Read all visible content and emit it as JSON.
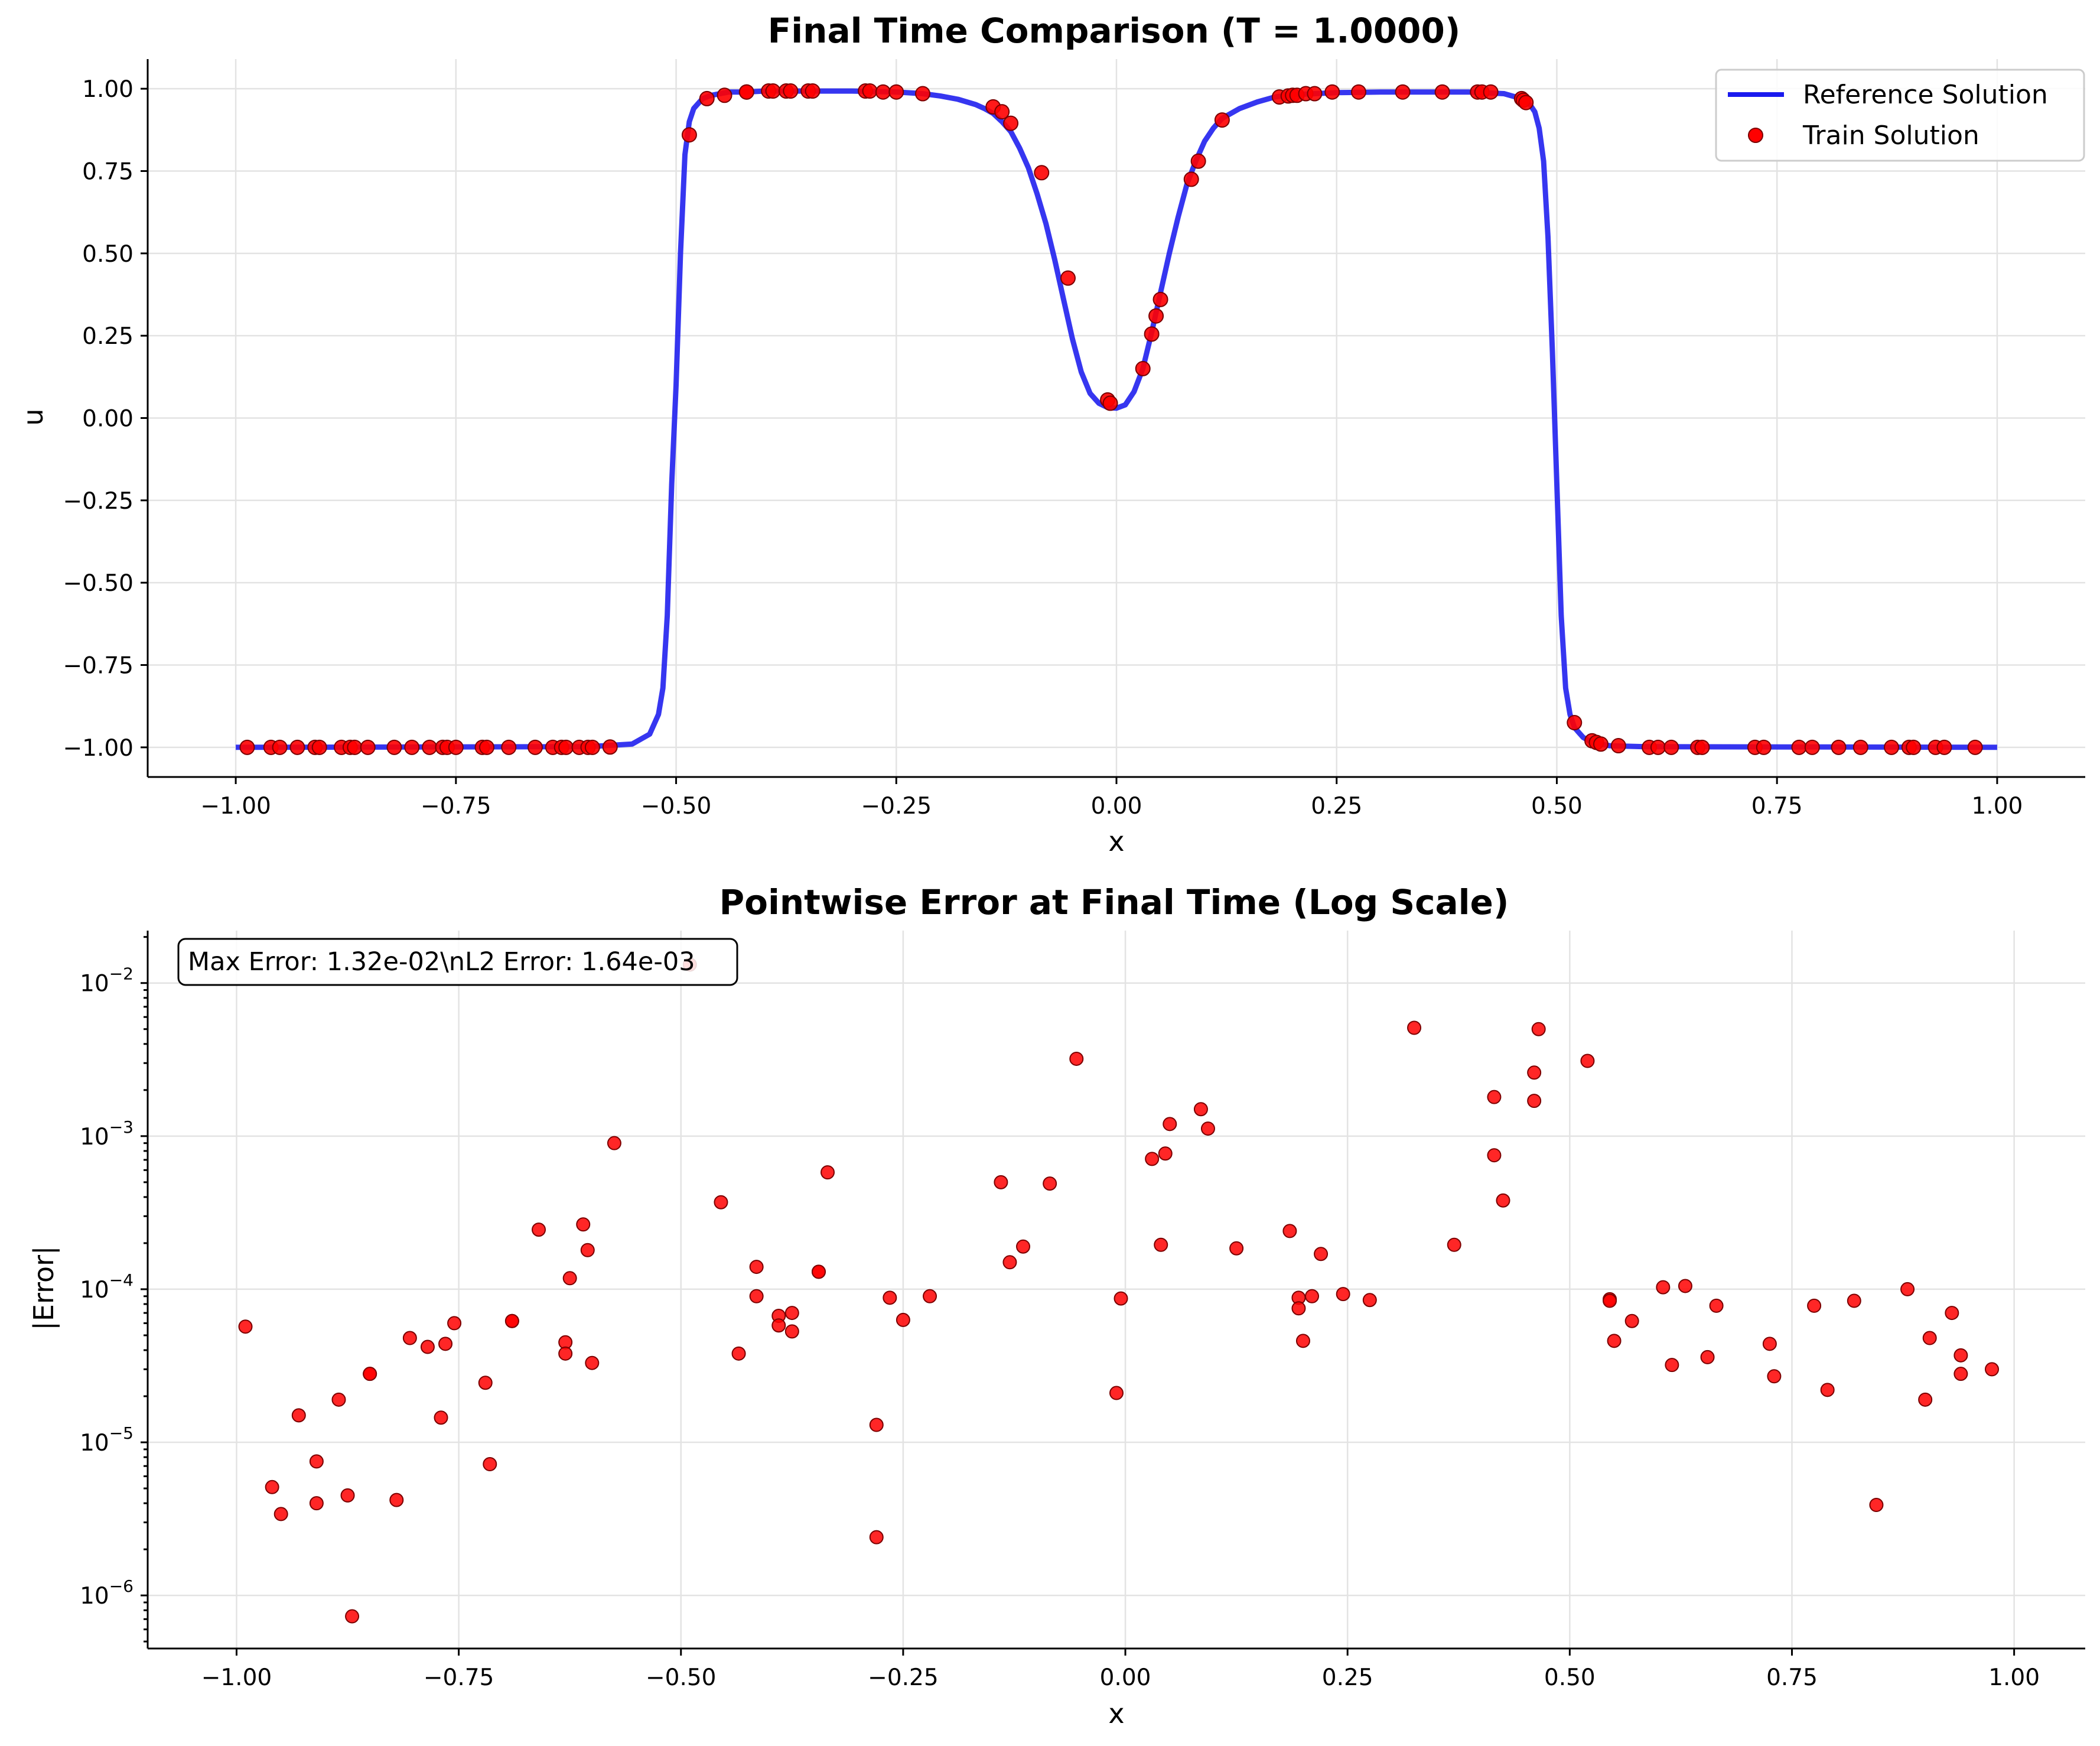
{
  "chart_data": [
    {
      "type": "line",
      "title": "Final Time Comparison (T = 1.0000)",
      "xlabel": "x",
      "ylabel": "u",
      "xlim": [
        -1.1,
        1.1
      ],
      "ylim": [
        -1.09,
        1.09
      ],
      "xticks": [
        -1.0,
        -0.75,
        -0.5,
        -0.25,
        0.0,
        0.25,
        0.5,
        0.75,
        1.0
      ],
      "xtick_labels": [
        "−1.00",
        "−0.75",
        "−0.50",
        "−0.25",
        "0.00",
        "0.25",
        "0.50",
        "0.75",
        "1.00"
      ],
      "yticks": [
        -1.0,
        -0.75,
        -0.5,
        -0.25,
        0.0,
        0.25,
        0.5,
        0.75,
        1.0
      ],
      "ytick_labels": [
        "−1.00",
        "−0.75",
        "−0.50",
        "−0.25",
        "0.00",
        "0.25",
        "0.50",
        "0.75",
        "1.00"
      ],
      "grid": true,
      "legend_position": "top-right",
      "series": [
        {
          "name": "Reference Solution",
          "kind": "line",
          "color": "#1a1aee",
          "x": [
            -1.0,
            -0.6,
            -0.55,
            -0.53,
            -0.52,
            -0.515,
            -0.51,
            -0.505,
            -0.5,
            -0.495,
            -0.49,
            -0.485,
            -0.48,
            -0.47,
            -0.46,
            -0.44,
            -0.42,
            -0.4,
            -0.35,
            -0.3,
            -0.25,
            -0.22,
            -0.2,
            -0.18,
            -0.16,
            -0.15,
            -0.14,
            -0.13,
            -0.12,
            -0.11,
            -0.1,
            -0.09,
            -0.08,
            -0.07,
            -0.06,
            -0.05,
            -0.04,
            -0.03,
            -0.02,
            -0.01,
            0.0,
            0.01,
            0.02,
            0.03,
            0.04,
            0.05,
            0.06,
            0.07,
            0.08,
            0.09,
            0.1,
            0.11,
            0.12,
            0.14,
            0.16,
            0.18,
            0.2,
            0.25,
            0.3,
            0.35,
            0.4,
            0.44,
            0.46,
            0.47,
            0.475,
            0.48,
            0.485,
            0.49,
            0.495,
            0.5,
            0.505,
            0.51,
            0.515,
            0.52,
            0.53,
            0.54,
            0.56,
            0.6,
            1.0
          ],
          "y": [
            -1.0,
            -0.998,
            -0.99,
            -0.96,
            -0.9,
            -0.82,
            -0.6,
            -0.2,
            0.1,
            0.5,
            0.8,
            0.9,
            0.94,
            0.97,
            0.98,
            0.99,
            0.99,
            0.993,
            0.993,
            0.993,
            0.99,
            0.985,
            0.978,
            0.968,
            0.952,
            0.94,
            0.925,
            0.9,
            0.87,
            0.82,
            0.76,
            0.68,
            0.59,
            0.48,
            0.36,
            0.24,
            0.14,
            0.075,
            0.045,
            0.032,
            0.03,
            0.04,
            0.08,
            0.15,
            0.26,
            0.38,
            0.5,
            0.61,
            0.71,
            0.78,
            0.84,
            0.88,
            0.91,
            0.94,
            0.96,
            0.975,
            0.982,
            0.988,
            0.99,
            0.99,
            0.99,
            0.985,
            0.97,
            0.95,
            0.93,
            0.88,
            0.78,
            0.55,
            0.2,
            -0.2,
            -0.6,
            -0.82,
            -0.9,
            -0.94,
            -0.97,
            -0.985,
            -0.995,
            -0.998,
            -1.0
          ]
        },
        {
          "name": "Train Solution",
          "kind": "scatter",
          "color": "#ff0000",
          "x": [
            -0.987,
            -0.96,
            -0.95,
            -0.93,
            -0.91,
            -0.905,
            -0.88,
            -0.87,
            -0.865,
            -0.85,
            -0.82,
            -0.8,
            -0.78,
            -0.765,
            -0.76,
            -0.75,
            -0.72,
            -0.715,
            -0.69,
            -0.66,
            -0.64,
            -0.63,
            -0.625,
            -0.61,
            -0.6,
            -0.595,
            -0.575,
            -0.485,
            -0.465,
            -0.445,
            -0.42,
            -0.42,
            -0.395,
            -0.39,
            -0.375,
            -0.37,
            -0.35,
            -0.345,
            -0.285,
            -0.28,
            -0.265,
            -0.25,
            -0.22,
            -0.14,
            -0.13,
            -0.12,
            -0.085,
            -0.055,
            -0.01,
            -0.007,
            0.03,
            0.04,
            0.045,
            0.05,
            0.085,
            0.093,
            0.12,
            0.185,
            0.195,
            0.2,
            0.205,
            0.215,
            0.225,
            0.245,
            0.275,
            0.325,
            0.37,
            0.41,
            0.415,
            0.425,
            0.46,
            0.462,
            0.465,
            0.52,
            0.54,
            0.545,
            0.55,
            0.57,
            0.605,
            0.615,
            0.63,
            0.66,
            0.665,
            0.725,
            0.735,
            0.775,
            0.79,
            0.82,
            0.845,
            0.88,
            0.9,
            0.905,
            0.93,
            0.94,
            0.975
          ],
          "y": [
            -1.0,
            -1.0,
            -1.0,
            -1.0,
            -1.0,
            -1.0,
            -1.0,
            -1.0,
            -1.0,
            -1.0,
            -1.0,
            -1.0,
            -1.0,
            -1.0,
            -1.0,
            -1.0,
            -1.0,
            -1.0,
            -1.0,
            -1.0,
            -1.0,
            -1.0,
            -1.0,
            -1.0,
            -1.0,
            -1.0,
            -0.999,
            0.86,
            0.97,
            0.98,
            0.99,
            0.99,
            0.993,
            0.993,
            0.993,
            0.993,
            0.993,
            0.993,
            0.993,
            0.993,
            0.99,
            0.99,
            0.985,
            0.945,
            0.93,
            0.895,
            0.745,
            0.425,
            0.055,
            0.045,
            0.15,
            0.255,
            0.31,
            0.36,
            0.725,
            0.78,
            0.905,
            0.975,
            0.978,
            0.98,
            0.98,
            0.985,
            0.985,
            0.99,
            0.99,
            0.99,
            0.99,
            0.99,
            0.99,
            0.99,
            0.97,
            0.965,
            0.958,
            -0.925,
            -0.98,
            -0.985,
            -0.99,
            -0.995,
            -1.0,
            -1.0,
            -1.0,
            -1.0,
            -1.0,
            -1.0,
            -1.0,
            -1.0,
            -1.0,
            -1.0,
            -1.0,
            -1.0,
            -1.0,
            -1.0,
            -1.0,
            -1.0,
            -1.0
          ]
        }
      ]
    },
    {
      "type": "scatter",
      "title": "Pointwise Error at Final Time (Log Scale)",
      "xlabel": "x",
      "ylabel": "|Error|",
      "xlim": [
        -1.1,
        1.08
      ],
      "ylim": [
        4.5e-07,
        0.022
      ],
      "yscale": "log",
      "xticks": [
        -1.0,
        -0.75,
        -0.5,
        -0.25,
        0.0,
        0.25,
        0.5,
        0.75,
        1.0
      ],
      "xtick_labels": [
        "−1.00",
        "−0.75",
        "−0.50",
        "−0.25",
        "0.00",
        "0.25",
        "0.50",
        "0.75",
        "1.00"
      ],
      "yticks": [
        1e-06,
        1e-05,
        0.0001,
        0.001,
        0.01
      ],
      "ytick_labels": [
        {
          "base": "10",
          "exp": "−6"
        },
        {
          "base": "10",
          "exp": "−5"
        },
        {
          "base": "10",
          "exp": "−4"
        },
        {
          "base": "10",
          "exp": "−3"
        },
        {
          "base": "10",
          "exp": "−2"
        }
      ],
      "grid": true,
      "annotation": {
        "text": "Max Error: 1.32e-02\\nL2 Error: 1.64e-03",
        "position": "top-left"
      },
      "series": [
        {
          "color": "#ff0000",
          "x": [
            -0.99,
            -0.96,
            -0.95,
            -0.93,
            -0.91,
            -0.91,
            -0.885,
            -0.875,
            -0.87,
            -0.85,
            -0.85,
            -0.82,
            -0.805,
            -0.785,
            -0.77,
            -0.765,
            -0.755,
            -0.72,
            -0.715,
            -0.69,
            -0.69,
            -0.66,
            -0.63,
            -0.63,
            -0.625,
            -0.61,
            -0.605,
            -0.6,
            -0.575,
            -0.49,
            -0.455,
            -0.435,
            -0.415,
            -0.415,
            -0.39,
            -0.39,
            -0.375,
            -0.375,
            -0.345,
            -0.345,
            -0.335,
            -0.28,
            -0.28,
            -0.265,
            -0.25,
            -0.22,
            -0.14,
            -0.13,
            -0.115,
            -0.085,
            -0.055,
            -0.01,
            -0.005,
            0.03,
            0.04,
            0.045,
            0.05,
            0.085,
            0.093,
            0.125,
            0.185,
            0.195,
            0.195,
            0.2,
            0.21,
            0.22,
            0.245,
            0.275,
            0.325,
            0.37,
            0.415,
            0.415,
            0.425,
            0.46,
            0.46,
            0.465,
            0.52,
            0.545,
            0.545,
            0.55,
            0.57,
            0.605,
            0.615,
            0.63,
            0.655,
            0.665,
            0.725,
            0.73,
            0.775,
            0.79,
            0.82,
            0.845,
            0.88,
            0.9,
            0.905,
            0.93,
            0.94,
            0.94,
            0.975
          ],
          "y": [
            5.7e-05,
            5.1e-06,
            3.4e-06,
            1.5e-05,
            4e-06,
            7.5e-06,
            1.9e-05,
            4.5e-06,
            7.3e-07,
            2.8e-05,
            2.8e-05,
            4.2e-06,
            4.8e-05,
            4.2e-05,
            1.45e-05,
            4.4e-05,
            6e-05,
            2.45e-05,
            7.2e-06,
            6.2e-05,
            6.2e-05,
            0.000245,
            4.5e-05,
            3.8e-05,
            0.000118,
            0.000265,
            0.00018,
            3.3e-05,
            0.0009,
            0.0132,
            0.00037,
            3.8e-05,
            9e-05,
            0.00014,
            6.7e-05,
            5.8e-05,
            7e-05,
            5.3e-05,
            0.00013,
            0.00013,
            0.00058,
            1.3e-05,
            2.4e-06,
            8.8e-05,
            6.3e-05,
            9e-05,
            0.0005,
            0.00015,
            0.00019,
            0.00049,
            0.0032,
            2.1e-05,
            8.7e-05,
            0.00071,
            0.000195,
            0.00077,
            0.0012,
            0.0015,
            0.00112,
            0.000185,
            0.00024,
            8.8e-05,
            7.5e-05,
            4.6e-05,
            9e-05,
            0.00017,
            9.3e-05,
            8.5e-05,
            0.0051,
            0.000195,
            0.00075,
            0.0018,
            0.00038,
            0.0026,
            0.0017,
            0.005,
            0.0031,
            8.6e-05,
            8.4e-05,
            4.6e-05,
            6.2e-05,
            0.000103,
            3.2e-05,
            0.000105,
            3.6e-05,
            7.8e-05,
            4.4e-05,
            2.7e-05,
            7.8e-05,
            2.2e-05,
            8.4e-05,
            3.9e-06,
            0.0001,
            1.9e-05,
            4.8e-05,
            7e-05,
            3.7e-05,
            2.8e-05,
            3e-05
          ]
        }
      ]
    }
  ]
}
